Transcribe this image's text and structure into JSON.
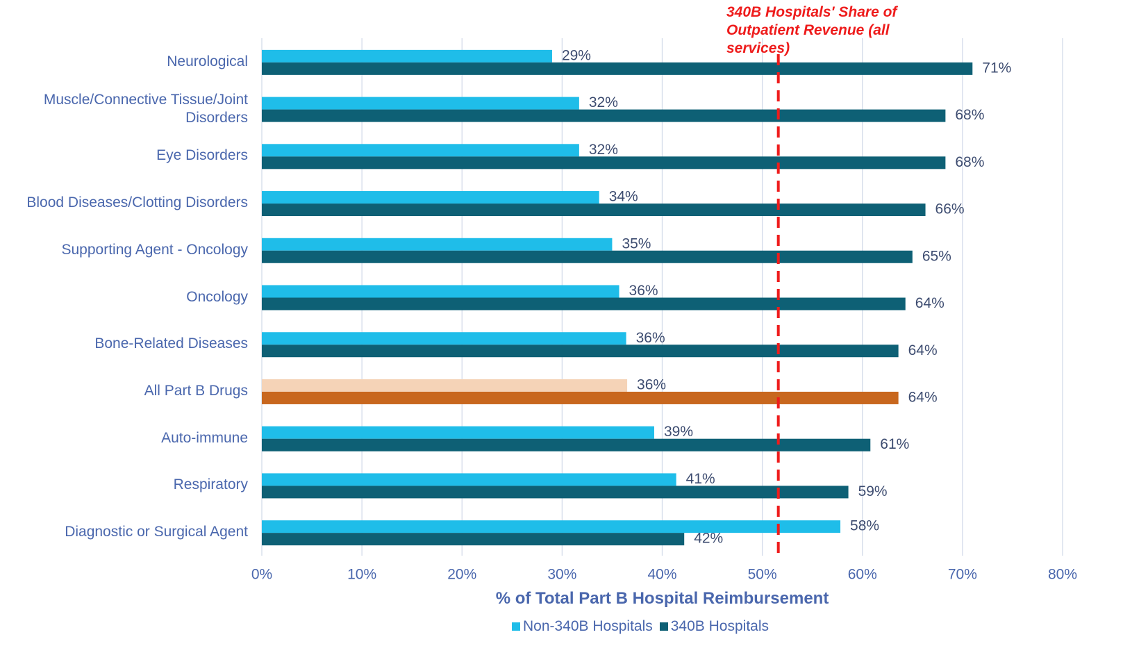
{
  "chart_data": {
    "type": "barh",
    "categories": [
      "Neurological",
      "Muscle/Connective Tissue/Joint Disorders",
      "Eye Disorders",
      "Blood Diseases/Clotting Disorders",
      "Supporting Agent - Oncology",
      "Oncology",
      "Bone-Related Diseases",
      "All Part B Drugs",
      "Auto-immune",
      "Respiratory",
      "Diagnostic or Surgical Agent"
    ],
    "series": [
      {
        "name": "Non-340B Hospitals",
        "color": "#1fbde9",
        "colors": [
          "#1fbde9",
          "#1fbde9",
          "#1fbde9",
          "#1fbde9",
          "#1fbde9",
          "#1fbde9",
          "#1fbde9",
          "#f5d3b7",
          "#1fbde9",
          "#1fbde9",
          "#1fbde9"
        ],
        "values": [
          29.0,
          31.7,
          31.7,
          33.7,
          35.0,
          35.7,
          36.4,
          36.5,
          39.2,
          41.4,
          57.8
        ],
        "value_labels": [
          "29%",
          "32%",
          "32%",
          "34%",
          "35%",
          "36%",
          "36%",
          "36%",
          "39%",
          "41%",
          "58%"
        ]
      },
      {
        "name": "340B Hospitals",
        "color": "#0e6075",
        "colors": [
          "#0e6075",
          "#0e6075",
          "#0e6075",
          "#0e6075",
          "#0e6075",
          "#0e6075",
          "#0e6075",
          "#c8671e",
          "#0e6075",
          "#0e6075",
          "#0e6075"
        ],
        "values": [
          71.0,
          68.3,
          68.3,
          66.3,
          65.0,
          64.3,
          63.6,
          63.6,
          60.8,
          58.6,
          42.2
        ],
        "value_labels": [
          "71%",
          "68%",
          "68%",
          "66%",
          "65%",
          "64%",
          "64%",
          "64%",
          "61%",
          "59%",
          "42%"
        ]
      }
    ],
    "xlabel": "% of Total Part B Hospital Reimbursement",
    "xlim": [
      0,
      80
    ],
    "xticks": [
      {
        "value": 0,
        "label": "0%"
      },
      {
        "value": 10,
        "label": "10%"
      },
      {
        "value": 20,
        "label": "20%"
      },
      {
        "value": 30,
        "label": "30%"
      },
      {
        "value": 40,
        "label": "40%"
      },
      {
        "value": 50,
        "label": "50%"
      },
      {
        "value": 60,
        "label": "60%"
      },
      {
        "value": 70,
        "label": "70%"
      },
      {
        "value": 80,
        "label": "80%"
      }
    ],
    "grid": true,
    "legend": "bottom",
    "reference_line": {
      "value": 51.6,
      "color": "#ee1c1c",
      "label": [
        "340B Hospitals' Share of",
        "Outpatient Revenue (all",
        "services)"
      ]
    }
  }
}
